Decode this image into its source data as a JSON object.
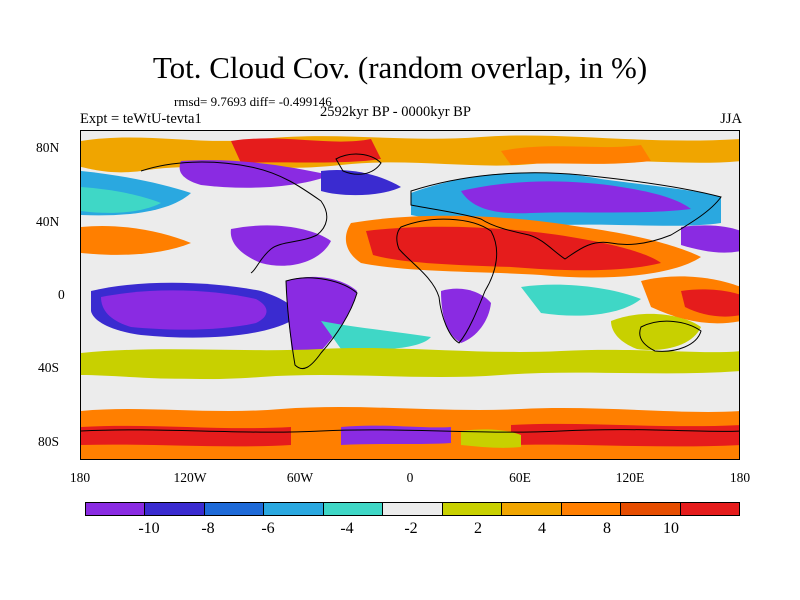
{
  "title": "Tot. Cloud Cov. (random overlap, in %)",
  "stats": "rmsd= 9.7693 diff= -0.499146",
  "experiment": "Expt = teWtU-tevta1",
  "period": "2592kyr BP - 0000kyr BP",
  "season": "JJA",
  "map": {
    "projection": "cylindrical equidistant",
    "lat_labels": [
      "80N",
      "40N",
      "0",
      "40S",
      "80S"
    ],
    "lon_labels": [
      "180",
      "120W",
      "60W",
      "0",
      "60E",
      "120E",
      "180"
    ]
  },
  "colorbar": {
    "colors": [
      "#8a2be2",
      "#3a2bd0",
      "#1e6ad8",
      "#2aa8e0",
      "#3fd7c6",
      "#ececec",
      "#c8d000",
      "#f0a500",
      "#ff7f00",
      "#e64d00",
      "#e51c1c"
    ],
    "labels": [
      "-10",
      "-8",
      "-6",
      "-4",
      "-2",
      "2",
      "4",
      "8",
      "10"
    ]
  }
}
